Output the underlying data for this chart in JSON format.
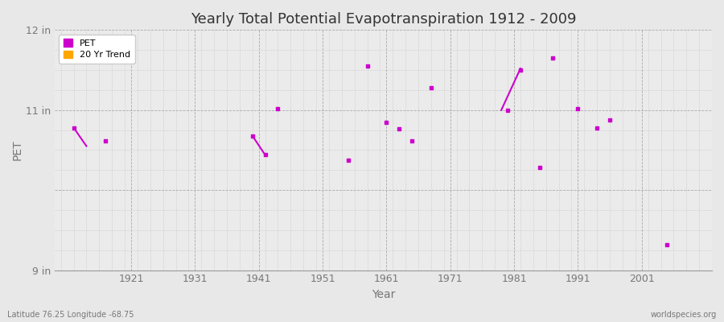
{
  "title": "Yearly Total Potential Evapotranspiration 1912 - 2009",
  "xlabel": "Year",
  "ylabel": "PET",
  "background_color": "#e8e8e8",
  "plot_bg_color": "#ebebeb",
  "pet_color": "#cc00cc",
  "trend_color": "#ffa500",
  "ylim": [
    9.0,
    12.0
  ],
  "xlim": [
    1909,
    2012
  ],
  "yticks": [
    9.0,
    10.0,
    11.0,
    12.0
  ],
  "ytick_labels": [
    "9 in",
    "",
    "11 in",
    "12 in"
  ],
  "xticks": [
    1921,
    1931,
    1941,
    1951,
    1961,
    1971,
    1981,
    1991,
    2001
  ],
  "footer_left": "Latitude 76.25 Longitude -68.75",
  "footer_right": "worldspecies.org",
  "pet_data": [
    [
      1912,
      10.78
    ],
    [
      1917,
      10.62
    ],
    [
      1940,
      10.68
    ],
    [
      1942,
      10.44
    ],
    [
      1944,
      11.02
    ],
    [
      1955,
      10.37
    ],
    [
      1958,
      11.55
    ],
    [
      1961,
      10.85
    ],
    [
      1963,
      10.77
    ],
    [
      1965,
      10.62
    ],
    [
      1968,
      11.28
    ],
    [
      1980,
      11.0
    ],
    [
      1982,
      11.5
    ],
    [
      1985,
      10.28
    ],
    [
      1987,
      11.65
    ],
    [
      1991,
      11.02
    ],
    [
      1994,
      10.78
    ],
    [
      1996,
      10.88
    ],
    [
      2005,
      9.32
    ]
  ],
  "trend_segments": [
    [
      [
        1912,
        10.78
      ],
      [
        1914,
        10.55
      ]
    ],
    [
      [
        1940,
        10.68
      ],
      [
        1942,
        10.44
      ]
    ],
    [
      [
        1979,
        11.0
      ],
      [
        1982,
        11.52
      ]
    ]
  ]
}
